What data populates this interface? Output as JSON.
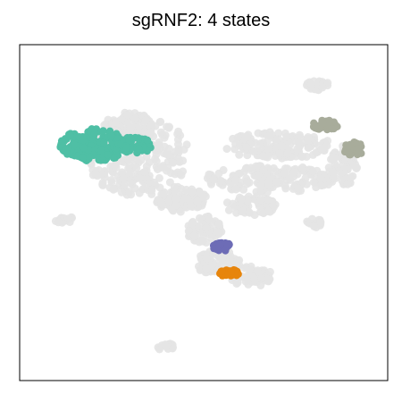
{
  "chart_data": {
    "type": "scatter",
    "title": "sgRNF2: 4 states",
    "xlabel": "",
    "ylabel": "",
    "grid": false,
    "legend": "none",
    "xlim": [
      0,
      100
    ],
    "ylim": [
      0,
      100
    ],
    "background": {
      "name": "other cells",
      "color": "#e4e4e4",
      "regions": [
        {
          "name": "central-cloud",
          "cx": 32,
          "cy": 67,
          "rx": 14,
          "ry": 12,
          "n": 260
        },
        {
          "name": "upper-mid",
          "cx": 30,
          "cy": 76,
          "rx": 7,
          "ry": 4,
          "n": 60
        },
        {
          "name": "stem-upper",
          "cx": 44,
          "cy": 54,
          "rx": 7,
          "ry": 4,
          "n": 90
        },
        {
          "name": "stem-lower",
          "cx": 50,
          "cy": 45,
          "rx": 5,
          "ry": 4,
          "n": 70
        },
        {
          "name": "lower-stem",
          "cx": 54,
          "cy": 35,
          "rx": 6,
          "ry": 4,
          "n": 80
        },
        {
          "name": "lower-tail",
          "cx": 63,
          "cy": 31,
          "rx": 6,
          "ry": 3,
          "n": 50
        },
        {
          "name": "right-upper-arm",
          "cx": 70,
          "cy": 70,
          "rx": 15,
          "ry": 4,
          "n": 150
        },
        {
          "name": "right-middle-arm",
          "cx": 68,
          "cy": 60,
          "rx": 18,
          "ry": 4,
          "n": 160
        },
        {
          "name": "right-lower-arm",
          "cx": 63,
          "cy": 52,
          "rx": 7,
          "ry": 3,
          "n": 60
        },
        {
          "name": "right-edge",
          "cx": 88,
          "cy": 64,
          "rx": 4,
          "ry": 6,
          "n": 70
        },
        {
          "name": "top-right-small",
          "cx": 81,
          "cy": 88,
          "rx": 3,
          "ry": 1.5,
          "n": 25
        },
        {
          "name": "left-small",
          "cx": 12,
          "cy": 48,
          "rx": 3,
          "ry": 1,
          "n": 15
        },
        {
          "name": "right-small",
          "cx": 80,
          "cy": 47,
          "rx": 2,
          "ry": 1.5,
          "n": 15
        },
        {
          "name": "bottom-small",
          "cx": 40,
          "cy": 10,
          "rx": 3,
          "ry": 1,
          "n": 15
        }
      ]
    },
    "series": [
      {
        "color": "#4fbfa5",
        "regions": [
          {
            "cx": 20,
            "cy": 70,
            "rx": 9,
            "ry": 5,
            "n": 180
          },
          {
            "cx": 31,
            "cy": 70,
            "rx": 5,
            "ry": 2.5,
            "n": 50
          }
        ]
      },
      {
        "color": "#a8ac9b",
        "regions": [
          {
            "cx": 83,
            "cy": 76,
            "rx": 3.5,
            "ry": 1.5,
            "n": 30
          },
          {
            "cx": 91,
            "cy": 69,
            "rx": 3,
            "ry": 2,
            "n": 35
          }
        ]
      },
      {
        "color": "#6d6cb6",
        "regions": [
          {
            "cx": 55,
            "cy": 40,
            "rx": 2.5,
            "ry": 1.5,
            "n": 30
          }
        ]
      },
      {
        "color": "#e7850c",
        "regions": [
          {
            "cx": 57,
            "cy": 32,
            "rx": 3,
            "ry": 1,
            "n": 30
          }
        ]
      }
    ]
  }
}
